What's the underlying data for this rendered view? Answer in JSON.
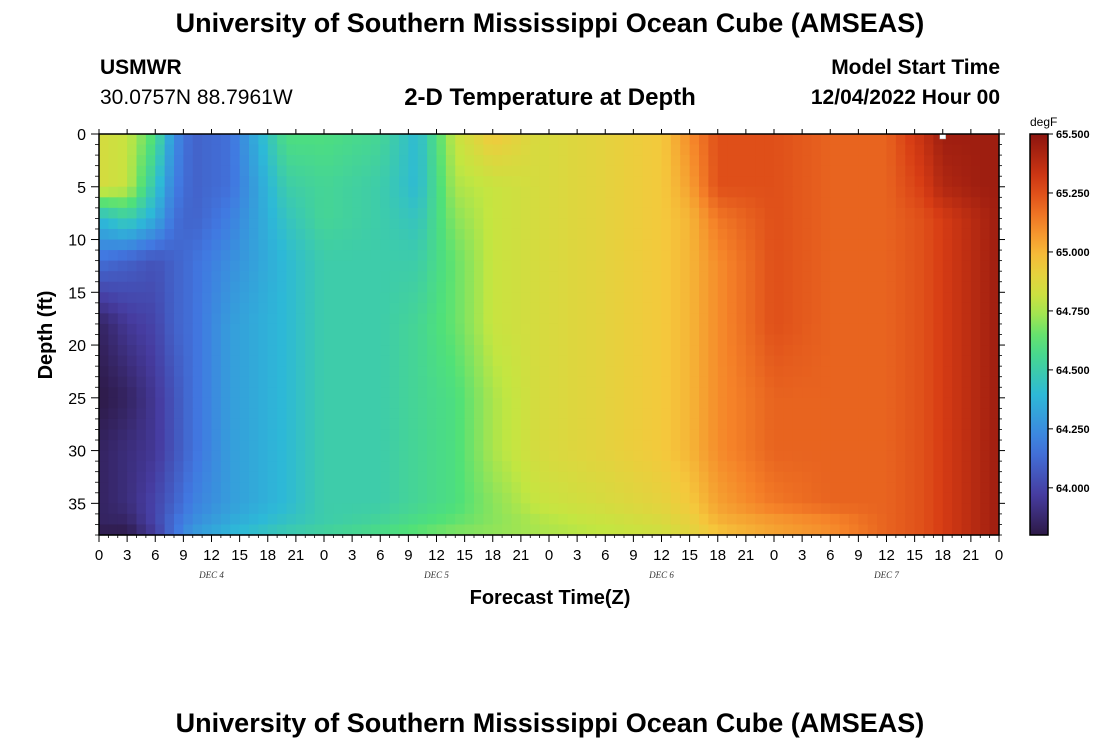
{
  "header": {
    "title": "University of Southern Mississippi Ocean Cube (AMSEAS)",
    "station": "USMWR",
    "coordinates": "30.0757N  88.7961W",
    "subtitle": "2-D Temperature at Depth",
    "model_start_label": "Model Start Time",
    "model_start_value": "12/04/2022 Hour 00",
    "footer_title": "University of Southern Mississippi Ocean Cube (AMSEAS)"
  },
  "chart_data": {
    "type": "heatmap",
    "xlabel": "Forecast Time(Z)",
    "ylabel": "Depth (ft)",
    "x_tick_labels": [
      "0",
      "3",
      "6",
      "9",
      "12",
      "15",
      "18",
      "21",
      "0",
      "3",
      "6",
      "9",
      "12",
      "15",
      "18",
      "21",
      "0",
      "3",
      "6",
      "9",
      "12",
      "15",
      "18",
      "21",
      "0",
      "3",
      "6",
      "9",
      "12",
      "15",
      "18",
      "21",
      "0"
    ],
    "x_range_hours": [
      0,
      96
    ],
    "day_labels": [
      {
        "label": "DEC 4",
        "hour": 12
      },
      {
        "label": "DEC 5",
        "hour": 36
      },
      {
        "label": "DEC 6",
        "hour": 60
      },
      {
        "label": "DEC 7",
        "hour": 84
      }
    ],
    "y_ticks": [
      0,
      5,
      10,
      15,
      20,
      25,
      30,
      35
    ],
    "y_range": [
      0,
      38
    ],
    "y_inverted": true,
    "colorbar": {
      "units": "degF",
      "ticks": [
        "64.000",
        "64.250",
        "64.500",
        "64.750",
        "65.000",
        "65.250",
        "65.500"
      ],
      "range": [
        63.8,
        65.5
      ]
    },
    "grid": false,
    "temperature_grid": {
      "hours": [
        0,
        3,
        6,
        8,
        10,
        14,
        20,
        24,
        30,
        34,
        38,
        42,
        47,
        54,
        60,
        63,
        66,
        72,
        78,
        84,
        88,
        90,
        94,
        96
      ],
      "depths": [
        0,
        5,
        8,
        12,
        18,
        25,
        30,
        35,
        37,
        38
      ],
      "values": [
        [
          64.85,
          64.8,
          64.6,
          64.25,
          64.1,
          64.15,
          64.6,
          64.6,
          64.55,
          64.4,
          64.8,
          64.95,
          64.85,
          64.9,
          64.95,
          65.1,
          65.25,
          65.25,
          65.2,
          65.2,
          65.35,
          65.45,
          65.45,
          65.45
        ],
        [
          64.85,
          64.8,
          64.45,
          64.2,
          64.1,
          64.15,
          64.5,
          64.55,
          64.5,
          64.4,
          64.75,
          64.8,
          64.85,
          64.9,
          64.95,
          65.05,
          65.25,
          65.25,
          65.2,
          65.2,
          65.3,
          65.4,
          65.45,
          65.45
        ],
        [
          64.4,
          64.5,
          64.35,
          64.15,
          64.1,
          64.2,
          64.45,
          64.55,
          64.5,
          64.45,
          64.7,
          64.8,
          64.85,
          64.9,
          64.95,
          65.0,
          65.15,
          65.25,
          65.2,
          65.2,
          65.25,
          65.3,
          65.4,
          65.45
        ],
        [
          64.15,
          64.1,
          64.05,
          64.1,
          64.15,
          64.25,
          64.4,
          64.5,
          64.5,
          64.5,
          64.65,
          64.8,
          64.85,
          64.9,
          64.95,
          65.0,
          65.1,
          65.25,
          65.2,
          65.2,
          65.25,
          65.3,
          65.4,
          65.45
        ],
        [
          63.85,
          63.95,
          64.0,
          64.1,
          64.15,
          64.3,
          64.4,
          64.5,
          64.5,
          64.55,
          64.65,
          64.8,
          64.85,
          64.9,
          64.95,
          65.0,
          65.1,
          65.25,
          65.2,
          65.2,
          65.25,
          65.3,
          65.4,
          65.45
        ],
        [
          63.8,
          63.85,
          63.95,
          64.05,
          64.15,
          64.3,
          64.4,
          64.5,
          64.5,
          64.55,
          64.6,
          64.75,
          64.85,
          64.9,
          64.95,
          65.0,
          65.1,
          65.2,
          65.2,
          65.2,
          65.25,
          65.3,
          65.4,
          65.45
        ],
        [
          63.85,
          63.9,
          63.95,
          64.05,
          64.15,
          64.3,
          64.4,
          64.5,
          64.5,
          64.55,
          64.6,
          64.75,
          64.85,
          64.9,
          64.95,
          65.0,
          65.1,
          65.2,
          65.2,
          65.2,
          65.25,
          65.3,
          65.4,
          65.45
        ],
        [
          63.85,
          63.9,
          64.0,
          64.1,
          64.2,
          64.3,
          64.4,
          64.5,
          64.5,
          64.55,
          64.6,
          64.7,
          64.8,
          64.85,
          64.9,
          64.95,
          65.05,
          65.15,
          65.2,
          65.2,
          65.25,
          65.3,
          65.4,
          65.45
        ],
        [
          63.85,
          63.85,
          64.0,
          64.15,
          64.25,
          64.35,
          64.45,
          64.5,
          64.55,
          64.6,
          64.65,
          64.7,
          64.75,
          64.8,
          64.85,
          64.9,
          65.0,
          65.05,
          65.1,
          65.2,
          65.25,
          65.3,
          65.4,
          65.45
        ],
        [
          63.8,
          63.8,
          63.95,
          64.15,
          64.3,
          64.4,
          64.5,
          64.55,
          64.6,
          64.65,
          64.7,
          64.72,
          64.75,
          64.78,
          64.82,
          64.88,
          64.95,
          65.05,
          65.1,
          65.2,
          65.25,
          65.3,
          65.4,
          65.45
        ]
      ]
    },
    "marker": {
      "hour": 90,
      "depth": 0
    }
  }
}
